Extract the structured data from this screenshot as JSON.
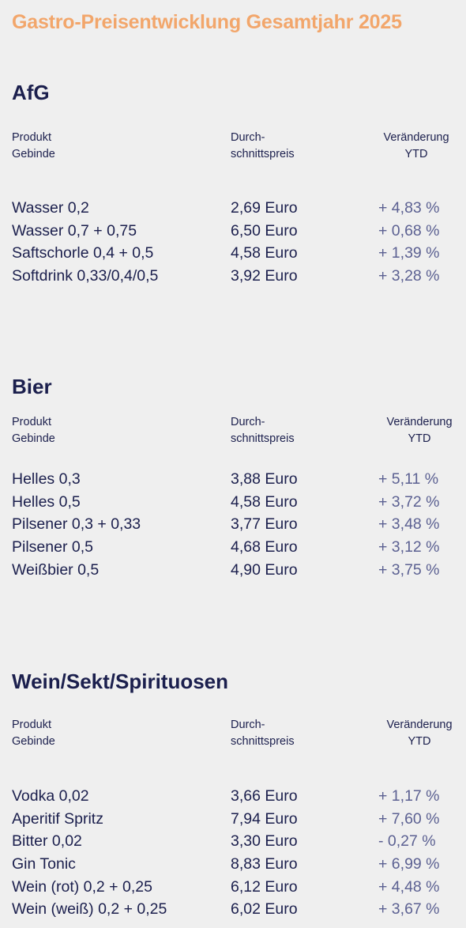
{
  "title": "Gastro-Preisentwicklung Gesamtjahr 2025",
  "sections": [
    {
      "heading": "AfG",
      "columns": {
        "product_line1": "Produkt",
        "product_line2": "Gebinde",
        "price_line1": "Durch-",
        "price_line2": "schnittspreis",
        "change_line1": "Veränderung",
        "change_line2": "YTD"
      },
      "rows": [
        {
          "product": "Wasser 0,2",
          "price": "2,69 Euro",
          "change": "+ 4,83 %"
        },
        {
          "product": "Wasser 0,7 + 0,75",
          "price": "6,50 Euro",
          "change": "+ 0,68 %"
        },
        {
          "product": "Saftschorle 0,4 + 0,5",
          "price": "4,58 Euro",
          "change": "+ 1,39 %"
        },
        {
          "product": "Softdrink 0,33/0,4/0,5",
          "price": "3,92 Euro",
          "change": "+ 3,28 %"
        }
      ]
    },
    {
      "heading": "Bier",
      "columns": {
        "product_line1": "Produkt",
        "product_line2": "Gebinde",
        "price_line1": "Durch-",
        "price_line2": "schnittspreis",
        "change_line1": "Veränderung",
        "change_line2": "YTD"
      },
      "rows": [
        {
          "product": "Helles 0,3",
          "price": "3,88 Euro",
          "change": "+ 5,11 %"
        },
        {
          "product": "Helles 0,5",
          "price": "4,58 Euro",
          "change": "+ 3,72 %"
        },
        {
          "product": "Pilsener 0,3 + 0,33",
          "price": "3,77 Euro",
          "change": "+ 3,48 %"
        },
        {
          "product": "Pilsener 0,5",
          "price": "4,68 Euro",
          "change": "+ 3,12 %"
        },
        {
          "product": "Weißbier 0,5",
          "price": "4,90 Euro",
          "change": "+ 3,75 %"
        }
      ]
    },
    {
      "heading": "Wein/Sekt/Spirituosen",
      "columns": {
        "product_line1": "Produkt",
        "product_line2": "Gebinde",
        "price_line1": "Durch-",
        "price_line2": "schnittspreis",
        "change_line1": "Veränderung",
        "change_line2": "YTD"
      },
      "rows": [
        {
          "product": "Vodka 0,02",
          "price": "3,66 Euro",
          "change": "+ 1,17 %"
        },
        {
          "product": "Aperitif Spritz",
          "price": "7,94 Euro",
          "change": "+ 7,60 %"
        },
        {
          "product": "Bitter 0,02",
          "price": "3,30 Euro",
          "change": "- 0,27 %"
        },
        {
          "product": "Gin Tonic",
          "price": "8,83 Euro",
          "change": "+ 6,99 %"
        },
        {
          "product": "Wein (rot) 0,2 + 0,25",
          "price": "6,12 Euro",
          "change": "+ 4,48 %"
        },
        {
          "product": "Wein (weiß) 0,2 + 0,25",
          "price": "6,02 Euro",
          "change": "+ 3,67 %"
        }
      ]
    }
  ]
}
